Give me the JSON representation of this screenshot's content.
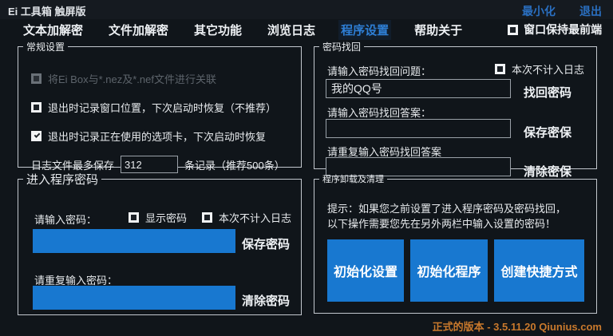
{
  "window": {
    "title": "Ei 工具箱 触屏版",
    "minimize_label": "最小化",
    "exit_label": "退出"
  },
  "menu": {
    "items": [
      {
        "label": "文本加解密",
        "active": false
      },
      {
        "label": "文件加解密",
        "active": false
      },
      {
        "label": "其它功能",
        "active": false
      },
      {
        "label": "浏览日志",
        "active": false
      },
      {
        "label": "程序设置",
        "active": true
      },
      {
        "label": "帮助关于",
        "active": false
      }
    ],
    "stay_on_top_label": "窗口保持最前端",
    "stay_on_top_checked": false
  },
  "general": {
    "title": "常规设置",
    "associate_label": "将Ei Box与*.nez及*.nef文件进行关联",
    "associate_disabled": true,
    "remember_window_label": "退出时记录窗口位置，下次启动时恢复（不推荐）",
    "remember_window_checked": false,
    "remember_tab_label": "退出时记录正在使用的选项卡，下次启动时恢复",
    "remember_tab_checked": true,
    "log_prefix": "日志文件最多保存",
    "log_count_value": "312",
    "log_suffix": "条记录（推荐500条）"
  },
  "recovery": {
    "title": "密码找回",
    "question_label": "请输入密码找回问题：",
    "no_log_label": "本次不计入日志",
    "no_log_checked": false,
    "question_value": "我的QQ号",
    "find_button": "找回密码",
    "answer_label": "请输入密码找回答案：",
    "answer_value": "",
    "save_button": "保存密保",
    "repeat_label": "请重复输入密码找回答案",
    "repeat_value": "",
    "clear_button": "清除密保"
  },
  "password": {
    "title": "进入程序密码",
    "enter_label": "请输入密码：",
    "show_password_label": "显示密码",
    "show_password_checked": false,
    "no_log_label": "本次不计入日志",
    "no_log_checked": false,
    "password_value": "",
    "save_button": "保存密码",
    "repeat_label": "请重复输入密码：",
    "repeat_value": "",
    "clear_button": "清除密码"
  },
  "cleanup": {
    "title": "程序卸载及清理",
    "hint": "提示：如果您之前设置了进入程序密码及密码找回，以下操作需要您先在另外两栏中输入设置的密码！",
    "buttons": [
      "初始化设置",
      "初始化程序",
      "创建快捷方式"
    ]
  },
  "status": {
    "version_text": "正式的版本 - 3.5.11.20 Qiunius.com"
  },
  "colors": {
    "background": "#10151a",
    "accent_blue": "#1878d0",
    "link_blue": "#2a6fc0",
    "menu_active_blue": "#2e7fd6",
    "status_orange": "#c9792c",
    "panel_border": "#c3c8ce",
    "disabled_text": "#5d646b"
  }
}
